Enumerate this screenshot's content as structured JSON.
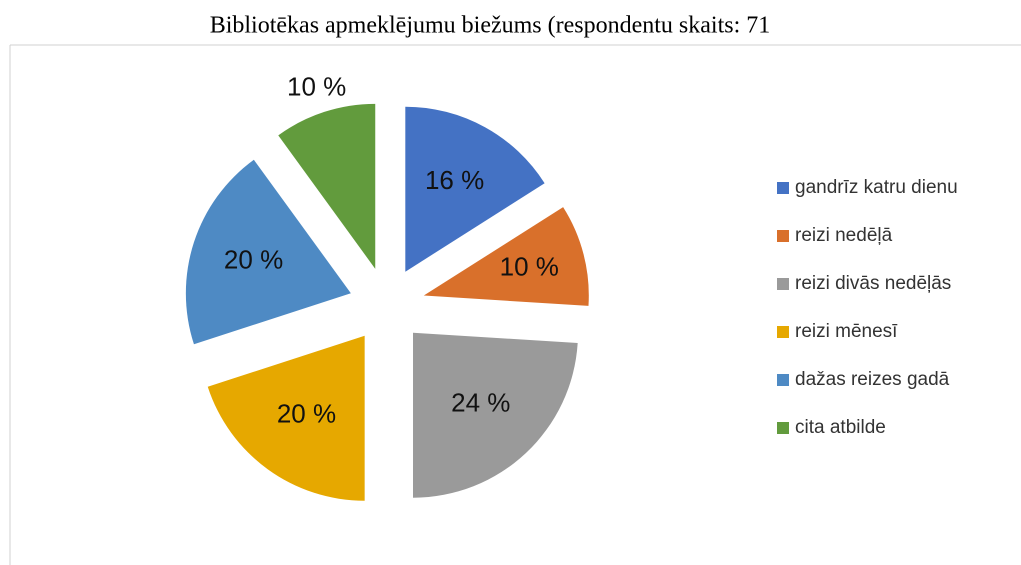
{
  "chart_data": {
    "type": "pie",
    "title": "Bibliotēkas apmeklējumu biežums (respondentu skaits: 71",
    "categories": [
      "gandrīz katru dienu",
      "reizi nedēļā",
      "reizi divās nedēļās",
      "reizi mēnesī",
      "dažas reizes gadā",
      "cita atbilde"
    ],
    "values": [
      16,
      10,
      24,
      20,
      20,
      10
    ],
    "value_labels": [
      "16 %",
      "10 %",
      "24 %",
      "20 %",
      "20 %",
      "10 %"
    ],
    "colors": [
      "#4472c4",
      "#d9702b",
      "#9a9a9a",
      "#e6a800",
      "#4e8ac4",
      "#629b3d"
    ],
    "legend": "right"
  }
}
